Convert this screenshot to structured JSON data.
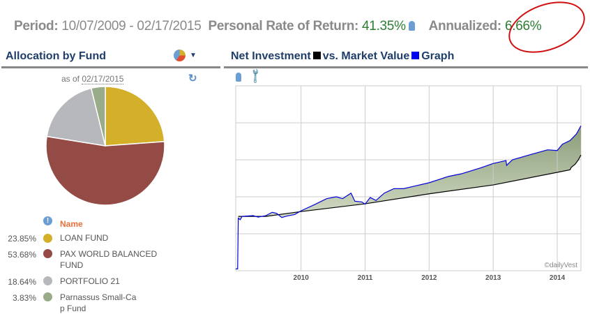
{
  "summary": {
    "period_label": "Period:",
    "period_value": "10/07/2009 - 02/17/2015",
    "prr_label": "Personal Rate of Return:",
    "prr_value": "41.35%",
    "annualized_label": "Annualized:",
    "annualized_value": "6.66%"
  },
  "allocation": {
    "title": "Allocation by Fund",
    "as_of_label": "as of",
    "as_of_date": "02/17/2015",
    "name_header": "Name",
    "funds": [
      {
        "pct": "23.85%",
        "name": "LOAN FUND",
        "value": 23.85,
        "color": "#d4b02a"
      },
      {
        "pct": "53.68%",
        "name": "PAX WORLD BALANCED FUND",
        "value": 53.68,
        "color": "#944a45"
      },
      {
        "pct": "18.64%",
        "name": "PORTFOLIO 21",
        "value": 18.64,
        "color": "#b6b8bc"
      },
      {
        "pct": "3.83%",
        "name": "Parnassus Small-Cap Fund",
        "value": 3.83,
        "color": "#9aab8a"
      }
    ]
  },
  "graph": {
    "title_a": "Net Investment",
    "title_b": "vs. Market Value",
    "title_c": "Graph",
    "watermark": "©dailyVest"
  },
  "chart_data": {
    "type": "area",
    "title": "Net Investment vs. Market Value Graph",
    "xlim": [
      2008.98,
      2014.37
    ],
    "ylim": [
      0,
      5
    ],
    "grid": true,
    "x_ticks": [
      "2010",
      "2011",
      "2012",
      "2013",
      "2014"
    ],
    "series": [
      {
        "name": "Market Value",
        "color": "#0000dd",
        "points": [
          [
            2008.98,
            0.05
          ],
          [
            2009.01,
            0.05
          ],
          [
            2009.02,
            1.42
          ],
          [
            2009.05,
            1.38
          ],
          [
            2009.08,
            1.47
          ],
          [
            2009.25,
            1.49
          ],
          [
            2009.33,
            1.45
          ],
          [
            2009.45,
            1.49
          ],
          [
            2009.55,
            1.58
          ],
          [
            2009.62,
            1.55
          ],
          [
            2009.7,
            1.44
          ],
          [
            2009.78,
            1.48
          ],
          [
            2009.9,
            1.52
          ],
          [
            2010.0,
            1.62
          ],
          [
            2010.2,
            1.78
          ],
          [
            2010.4,
            1.95
          ],
          [
            2010.55,
            2.0
          ],
          [
            2010.65,
            1.95
          ],
          [
            2010.78,
            2.1
          ],
          [
            2010.84,
            1.88
          ],
          [
            2010.95,
            1.86
          ],
          [
            2011.0,
            1.8
          ],
          [
            2011.08,
            1.98
          ],
          [
            2011.17,
            1.9
          ],
          [
            2011.3,
            2.1
          ],
          [
            2011.45,
            2.22
          ],
          [
            2011.6,
            2.22
          ],
          [
            2011.75,
            2.28
          ],
          [
            2012.0,
            2.38
          ],
          [
            2012.3,
            2.55
          ],
          [
            2012.5,
            2.62
          ],
          [
            2012.8,
            2.78
          ],
          [
            2013.0,
            2.9
          ],
          [
            2013.2,
            2.98
          ],
          [
            2013.21,
            2.85
          ],
          [
            2013.3,
            3.0
          ],
          [
            2013.6,
            3.15
          ],
          [
            2013.85,
            3.27
          ],
          [
            2014.0,
            3.25
          ],
          [
            2014.08,
            3.42
          ],
          [
            2014.2,
            3.52
          ],
          [
            2014.3,
            3.7
          ],
          [
            2014.37,
            3.92
          ]
        ]
      },
      {
        "name": "Net Investment",
        "color": "#000000",
        "points": [
          [
            2009.02,
            1.47
          ],
          [
            2009.45,
            1.47
          ],
          [
            2010.0,
            1.6
          ],
          [
            2011.0,
            1.81
          ],
          [
            2012.0,
            2.08
          ],
          [
            2013.0,
            2.32
          ],
          [
            2014.0,
            2.66
          ],
          [
            2014.2,
            2.73
          ],
          [
            2014.22,
            2.8
          ],
          [
            2014.28,
            2.88
          ],
          [
            2014.33,
            3.0
          ],
          [
            2014.37,
            3.13
          ]
        ]
      }
    ]
  }
}
